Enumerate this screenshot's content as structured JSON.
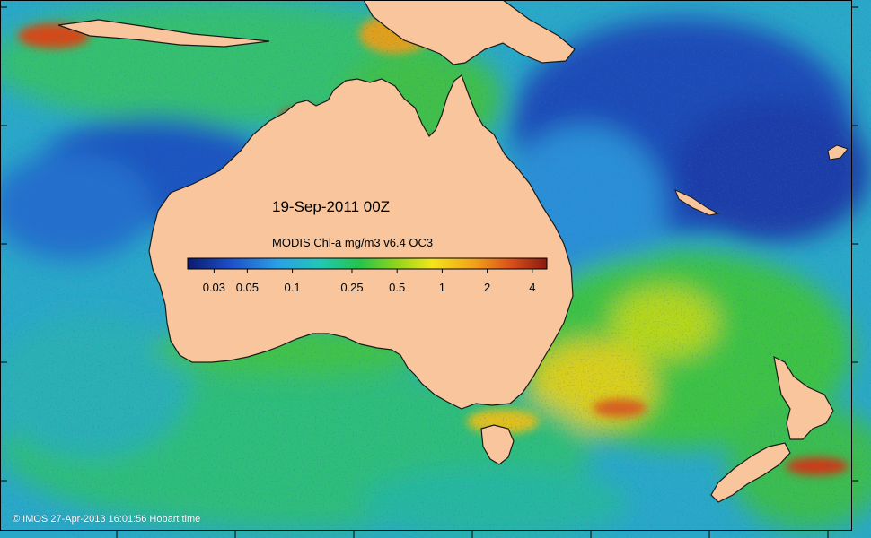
{
  "map": {
    "date_label": "19-Sep-2011 00Z",
    "colorbar": {
      "title": "MODIS Chl-a mg/m3 v6.4 OC3",
      "ticks": [
        "0.03",
        "0.05",
        "0.1",
        "0.25",
        "0.5",
        "1",
        "2",
        "4"
      ],
      "tick_values": [
        0.03,
        0.05,
        0.1,
        0.25,
        0.5,
        1,
        2,
        4
      ],
      "range": [
        0.02,
        5
      ],
      "scale": "log",
      "colors": [
        "#0b1a6e",
        "#1d4fc8",
        "#2aa0e6",
        "#22c7b5",
        "#25c44a",
        "#8fd41c",
        "#f2e51c",
        "#f2a01a",
        "#d9501a",
        "#8a1a10"
      ]
    },
    "copyright": "© IMOS 27-Apr-2013 16:01:56 Hobart time",
    "colors": {
      "land": "#f8c59c",
      "ocean_open_low": "#2f8fd8",
      "ocean_deep_low": "#1a47b8",
      "ocean_mid": "#27bf9a",
      "ocean_green": "#3fbf4a",
      "ocean_high": "#e6d21c",
      "coastal_bloom": "#cc3a12"
    }
  }
}
